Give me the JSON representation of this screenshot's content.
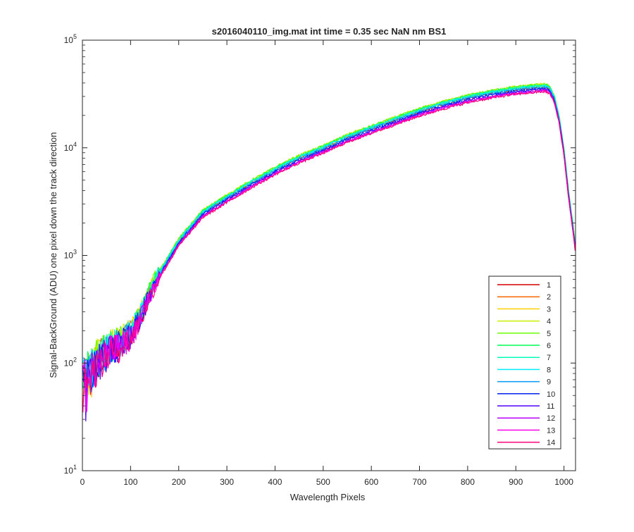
{
  "chart_data": {
    "type": "line",
    "title": "s2016040110_img.mat int time = 0.35 sec  NaN nm BS1",
    "xlabel": "Wavelength Pixels",
    "ylabel": "Signal-BackGround (ADU) one pixel down the track direction",
    "xlim": [
      0,
      1024
    ],
    "ylim": [
      10,
      100000
    ],
    "yscale": "log",
    "grid": false,
    "legend_position": "bottom-right",
    "x_ticks": [
      "0",
      "100",
      "200",
      "300",
      "400",
      "500",
      "600",
      "700",
      "800",
      "900",
      "1000"
    ],
    "y_ticks": [
      {
        "base": "10",
        "exp": "1"
      },
      {
        "base": "10",
        "exp": "2"
      },
      {
        "base": "10",
        "exp": "3"
      },
      {
        "base": "10",
        "exp": "4"
      },
      {
        "base": "10",
        "exp": "5"
      }
    ],
    "x": [
      0,
      10,
      20,
      30,
      40,
      50,
      60,
      80,
      100,
      120,
      150,
      200,
      250,
      300,
      350,
      400,
      450,
      500,
      550,
      600,
      650,
      700,
      750,
      800,
      850,
      900,
      930,
      960,
      970,
      980,
      990,
      1000,
      1010,
      1020,
      1024
    ],
    "base_profile": [
      75,
      78,
      85,
      100,
      110,
      120,
      135,
      150,
      180,
      260,
      550,
      1300,
      2400,
      3300,
      4500,
      6000,
      7700,
      9500,
      12000,
      14500,
      17500,
      21000,
      24500,
      28000,
      31000,
      33500,
      34500,
      35500,
      34000,
      28000,
      18000,
      9000,
      3500,
      1600,
      1100
    ],
    "series": [
      {
        "name": "1",
        "color": "#d40000",
        "scale": 1.03
      },
      {
        "name": "2",
        "color": "#ff6a00",
        "scale": 1.05
      },
      {
        "name": "3",
        "color": "#ffd000",
        "scale": 1.08
      },
      {
        "name": "4",
        "color": "#c8f000",
        "scale": 1.1
      },
      {
        "name": "5",
        "color": "#6aff00",
        "scale": 1.1
      },
      {
        "name": "6",
        "color": "#00ff55",
        "scale": 1.08
      },
      {
        "name": "7",
        "color": "#00ffbb",
        "scale": 1.07
      },
      {
        "name": "8",
        "color": "#00eeff",
        "scale": 1.06
      },
      {
        "name": "9",
        "color": "#0099ff",
        "scale": 1.03
      },
      {
        "name": "10",
        "color": "#0022ee",
        "scale": 1.0
      },
      {
        "name": "11",
        "color": "#5500ff",
        "scale": 0.98
      },
      {
        "name": "12",
        "color": "#bb00ff",
        "scale": 0.96
      },
      {
        "name": "13",
        "color": "#ff00ee",
        "scale": 0.95
      },
      {
        "name": "14",
        "color": "#ff0077",
        "scale": 0.94
      }
    ]
  }
}
